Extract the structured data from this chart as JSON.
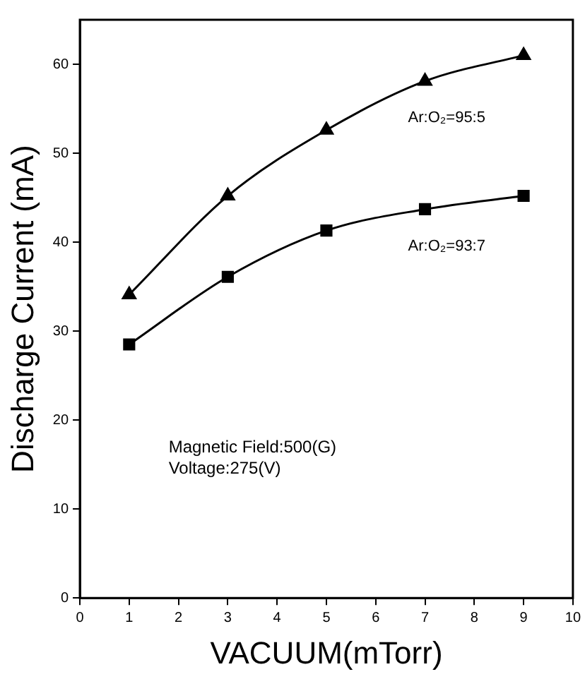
{
  "chart_data": {
    "type": "line",
    "xlabel": "VACUUM(mTorr)",
    "ylabel": "Discharge Current (mA)",
    "x": [
      1,
      3,
      5,
      7,
      9
    ],
    "series": [
      {
        "name": "Ar:O₂=95:5",
        "color": "#000000",
        "marker": "triangle",
        "values": [
          34.1,
          45.2,
          52.6,
          58.1,
          61.0
        ]
      },
      {
        "name": "Ar:O₂=93:7",
        "color": "#000000",
        "marker": "square",
        "values": [
          28.5,
          36.1,
          41.3,
          43.7,
          45.2
        ]
      }
    ],
    "xlim": [
      0,
      10
    ],
    "xticks": [
      0,
      1,
      2,
      3,
      4,
      5,
      6,
      7,
      8,
      9,
      10
    ],
    "ylim": [
      0,
      65
    ],
    "yticks": [
      0,
      10,
      20,
      30,
      40,
      50,
      60
    ],
    "grid": false,
    "legend": false,
    "annotations": [
      "Magnetic Field:500(G)",
      "Voltage:275(V)"
    ]
  }
}
